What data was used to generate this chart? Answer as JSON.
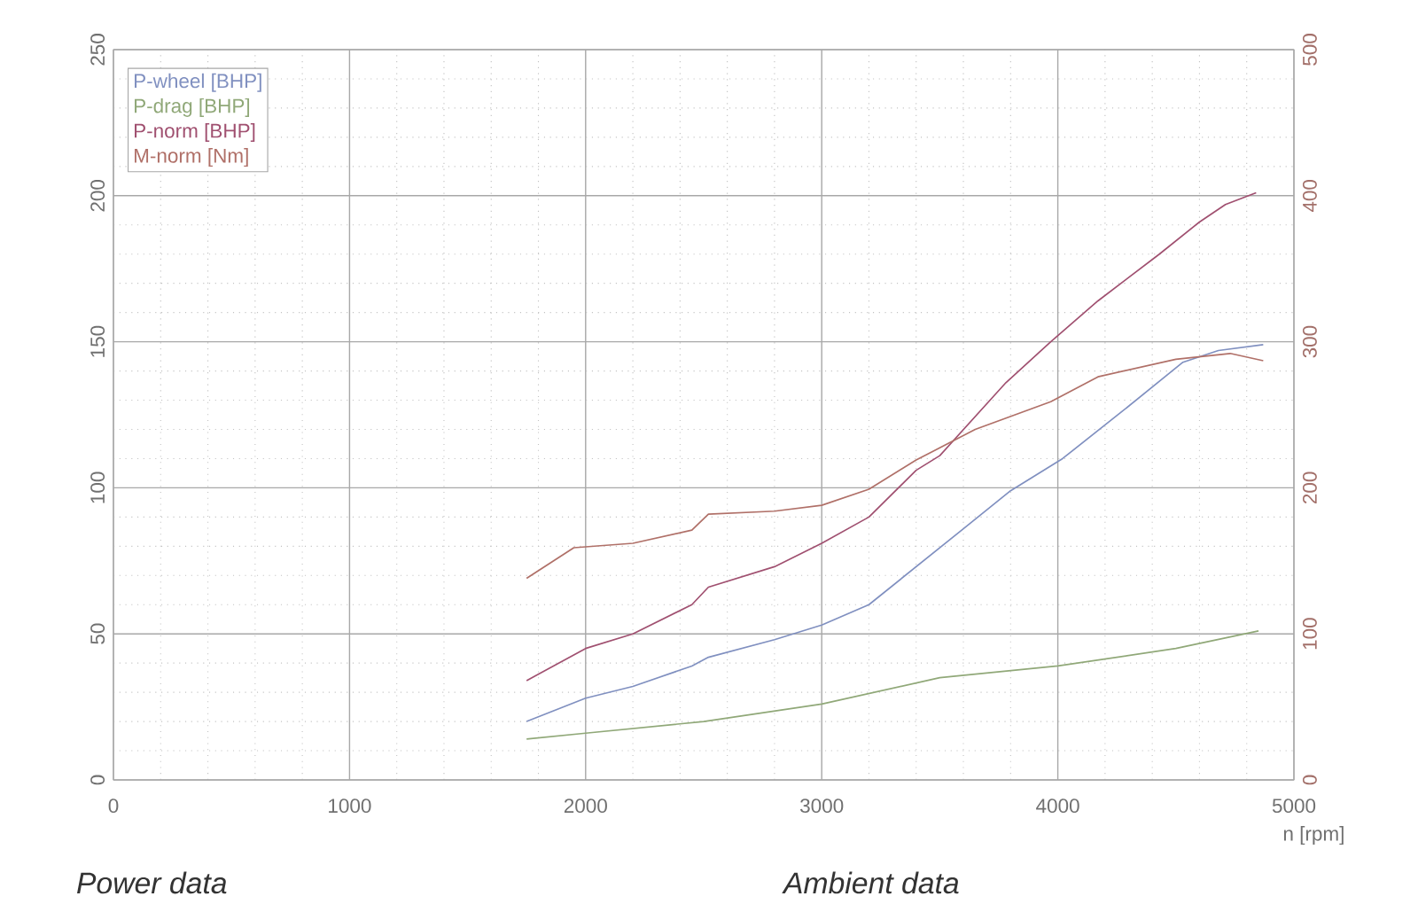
{
  "chart_data": {
    "type": "line",
    "xlabel": "n [rpm]",
    "xlim": [
      0,
      5000
    ],
    "xticks": [
      0,
      1000,
      2000,
      3000,
      4000,
      5000
    ],
    "ylim": [
      0,
      250
    ],
    "yticks": [
      0,
      50,
      100,
      150,
      200,
      250
    ],
    "y2lim": [
      0,
      500
    ],
    "y2ticks": [
      0,
      100,
      200,
      300,
      400,
      500
    ],
    "grid": true,
    "legend": "top left",
    "marker": "none",
    "series": [
      {
        "name": "P-wheel [BHP]",
        "color": "#8090c0",
        "x": [
          1750,
          2000,
          2200,
          2450,
          2520,
          2800,
          3000,
          3200,
          3600,
          3800,
          4020,
          4270,
          4530,
          4680,
          4870
        ],
        "values": [
          20,
          28,
          32,
          39,
          42,
          48,
          53,
          60,
          86,
          99,
          110,
          126,
          143,
          147,
          149
        ]
      },
      {
        "name": "P-drag [BHP]",
        "color": "#90a878",
        "x": [
          1750,
          2000,
          2500,
          3000,
          3500,
          4000,
          4500,
          4850
        ],
        "values": [
          14,
          16,
          20,
          26,
          35,
          39,
          45,
          51
        ]
      },
      {
        "name": "P-norm [BHP]",
        "color": "#a05070",
        "x": [
          1750,
          2000,
          2200,
          2450,
          2520,
          2800,
          3000,
          3200,
          3400,
          3500,
          3780,
          3970,
          4170,
          4430,
          4600,
          4710,
          4840
        ],
        "values": [
          34,
          45,
          50,
          60,
          66,
          73,
          81,
          90,
          106,
          111,
          136,
          150,
          164,
          180,
          191,
          197,
          201
        ]
      },
      {
        "name": "M-norm [Nm]",
        "color": "#b07068",
        "axis": "y2",
        "x": [
          1750,
          1950,
          2200,
          2450,
          2520,
          2800,
          3000,
          3200,
          3400,
          3650,
          3970,
          4170,
          4500,
          4730,
          4870
        ],
        "values": [
          138,
          159,
          162,
          171,
          182,
          184,
          188,
          199,
          219,
          240,
          259,
          276,
          288,
          292,
          287
        ]
      }
    ],
    "annotations": [
      "Power data",
      "Ambient data"
    ]
  }
}
